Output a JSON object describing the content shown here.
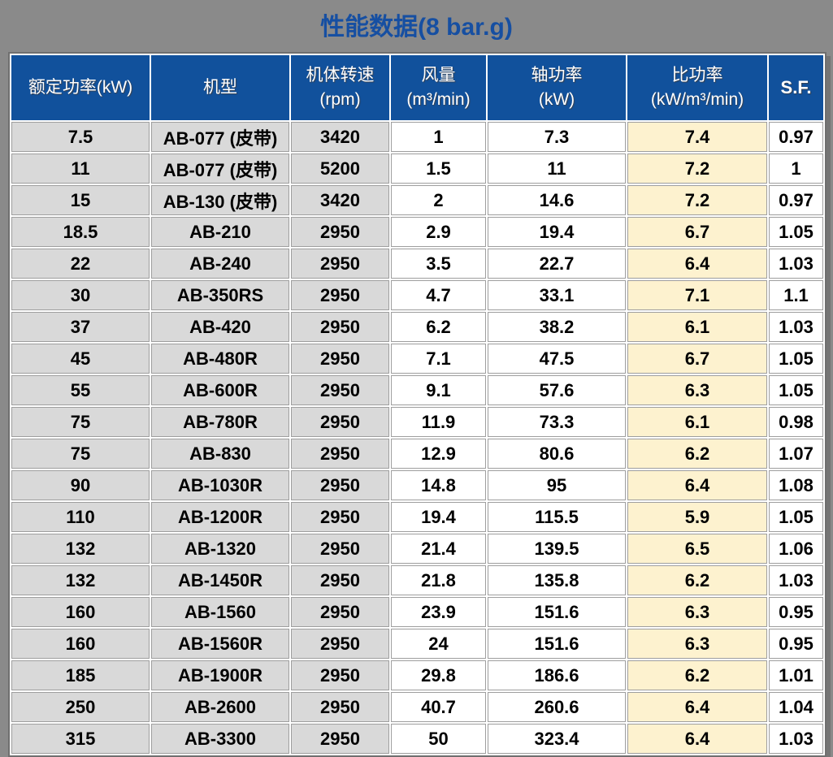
{
  "title": "性能数据(8 bar.g)",
  "colors": {
    "page_background": "#8A8A8A",
    "title_text": "#164FA2",
    "header_background": "#11519C",
    "header_text": "#FFFFFF",
    "gray_column_background": "#D9D9D9",
    "highlight_column_background": "#FDF2CF",
    "white_column_background": "#FFFFFF",
    "grid_line": "#9E9E9E",
    "outer_border": "#6F6F6F"
  },
  "chart_data": {
    "type": "table",
    "title": "性能数据(8 bar.g)",
    "columns": [
      {
        "id": "rated-power",
        "label": "额定功率(kW)",
        "unit": ""
      },
      {
        "id": "model",
        "label": "机型",
        "unit": ""
      },
      {
        "id": "body-speed",
        "label": "机体转速",
        "unit": "(rpm)"
      },
      {
        "id": "air-flow",
        "label": "风量",
        "unit": "(m³/min)"
      },
      {
        "id": "shaft-power",
        "label": "轴功率",
        "unit": "(kW)"
      },
      {
        "id": "specific-power",
        "label": "比功率",
        "unit": "(kW/m³/min)"
      },
      {
        "id": "service-factor",
        "label": "S.F.",
        "unit": ""
      }
    ],
    "rows": [
      [
        "7.5",
        "AB-077 (皮带)",
        "3420",
        "1",
        "7.3",
        "7.4",
        "0.97"
      ],
      [
        "11",
        "AB-077 (皮带)",
        "5200",
        "1.5",
        "11",
        "7.2",
        "1"
      ],
      [
        "15",
        "AB-130 (皮带)",
        "3420",
        "2",
        "14.6",
        "7.2",
        "0.97"
      ],
      [
        "18.5",
        "AB-210",
        "2950",
        "2.9",
        "19.4",
        "6.7",
        "1.05"
      ],
      [
        "22",
        "AB-240",
        "2950",
        "3.5",
        "22.7",
        "6.4",
        "1.03"
      ],
      [
        "30",
        "AB-350RS",
        "2950",
        "4.7",
        "33.1",
        "7.1",
        "1.1"
      ],
      [
        "37",
        "AB-420",
        "2950",
        "6.2",
        "38.2",
        "6.1",
        "1.03"
      ],
      [
        "45",
        "AB-480R",
        "2950",
        "7.1",
        "47.5",
        "6.7",
        "1.05"
      ],
      [
        "55",
        "AB-600R",
        "2950",
        "9.1",
        "57.6",
        "6.3",
        "1.05"
      ],
      [
        "75",
        "AB-780R",
        "2950",
        "11.9",
        "73.3",
        "6.1",
        "0.98"
      ],
      [
        "75",
        "AB-830",
        "2950",
        "12.9",
        "80.6",
        "6.2",
        "1.07"
      ],
      [
        "90",
        "AB-1030R",
        "2950",
        "14.8",
        "95",
        "6.4",
        "1.08"
      ],
      [
        "110",
        "AB-1200R",
        "2950",
        "19.4",
        "115.5",
        "5.9",
        "1.05"
      ],
      [
        "132",
        "AB-1320",
        "2950",
        "21.4",
        "139.5",
        "6.5",
        "1.06"
      ],
      [
        "132",
        "AB-1450R",
        "2950",
        "21.8",
        "135.8",
        "6.2",
        "1.03"
      ],
      [
        "160",
        "AB-1560",
        "2950",
        "23.9",
        "151.6",
        "6.3",
        "0.95"
      ],
      [
        "160",
        "AB-1560R",
        "2950",
        "24",
        "151.6",
        "6.3",
        "0.95"
      ],
      [
        "185",
        "AB-1900R",
        "2950",
        "29.8",
        "186.6",
        "6.2",
        "1.01"
      ],
      [
        "250",
        "AB-2600",
        "2950",
        "40.7",
        "260.6",
        "6.4",
        "1.04"
      ],
      [
        "315",
        "AB-3300",
        "2950",
        "50",
        "323.4",
        "6.4",
        "1.03"
      ]
    ]
  }
}
